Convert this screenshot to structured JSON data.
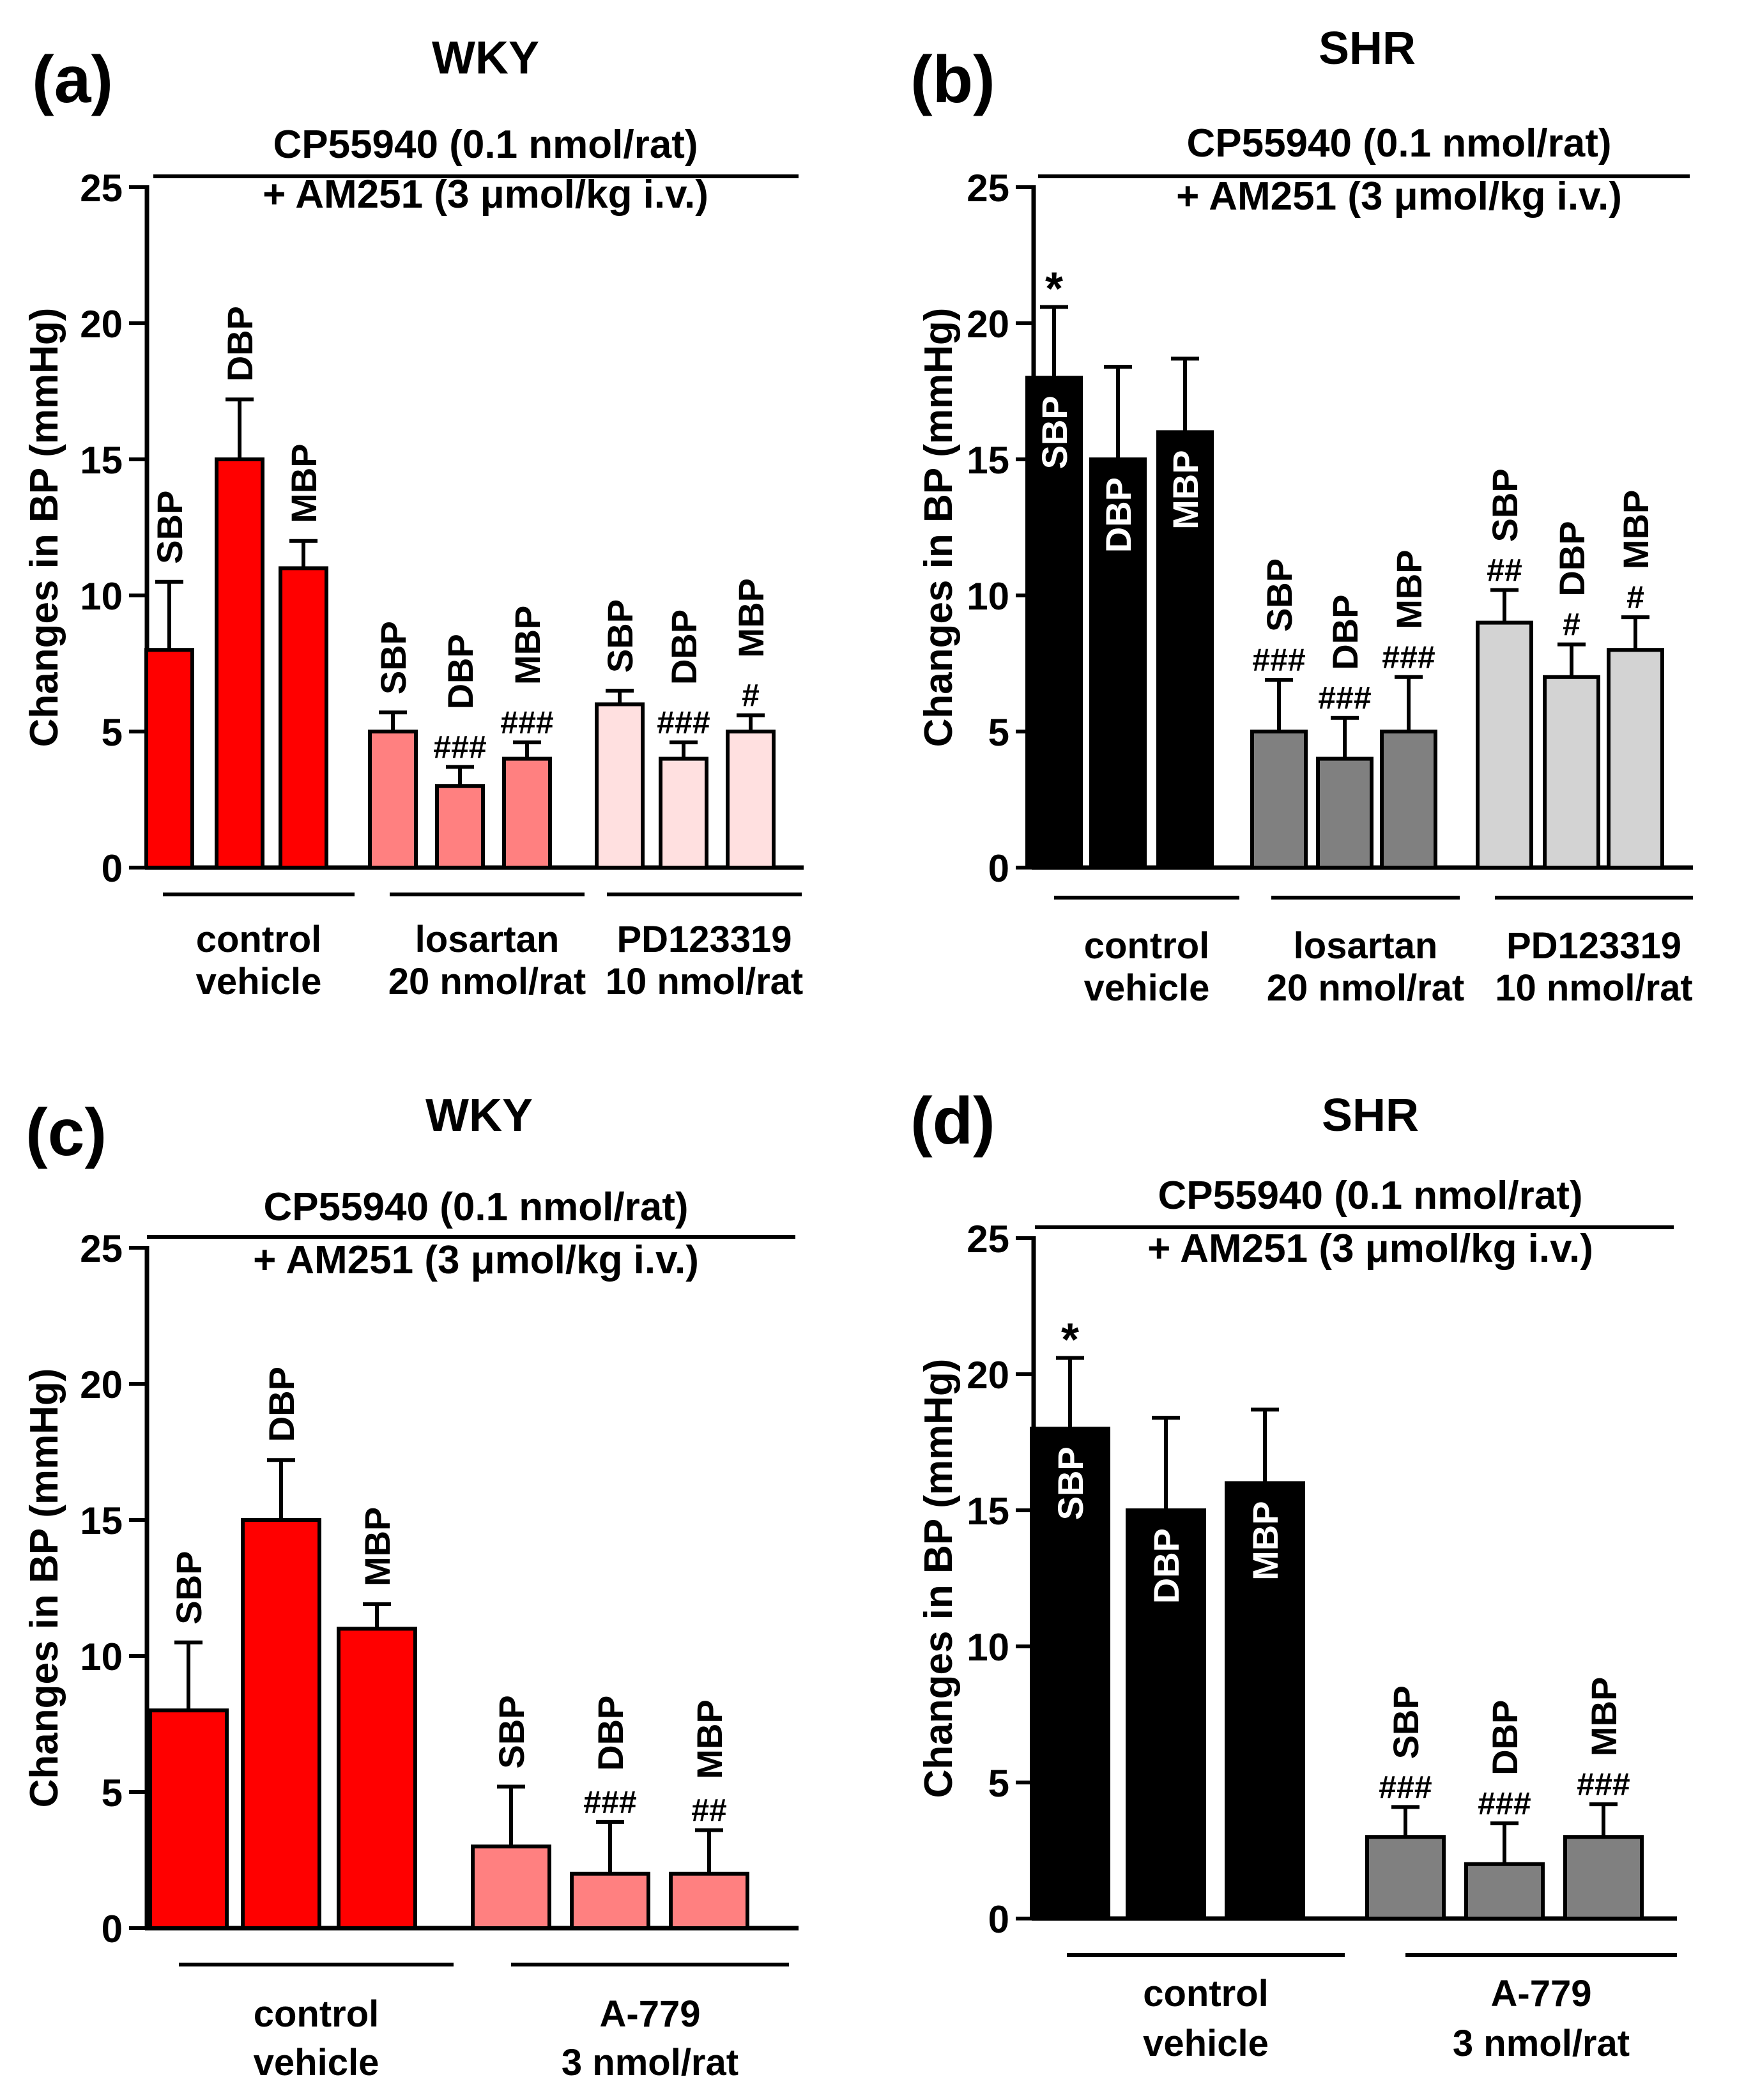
{
  "chart_data": [
    {
      "type": "bar",
      "panel_label": "(a)",
      "title": "WKY",
      "treatment_line1": "CP55940 (0.1 nmol/rat)",
      "treatment_line2": "+ AM251 (3 μmol/kg i.v.)",
      "ylabel": "Changes in BP (mmHg)",
      "ylim": [
        0,
        25
      ],
      "yticks": [
        "0",
        "5",
        "10",
        "15",
        "20",
        "25"
      ],
      "colors": [
        "#ff0000",
        "#ff8080",
        "#ffe0e0"
      ],
      "groups": [
        {
          "label1": "control",
          "label2": "vehicle",
          "bars": [
            {
              "name": "SBP",
              "value": 8,
              "err": 2.5,
              "sig": ""
            },
            {
              "name": "DBP",
              "value": 15,
              "err": 2.2,
              "sig": ""
            },
            {
              "name": "MBP",
              "value": 11,
              "err": 1.0,
              "sig": ""
            }
          ]
        },
        {
          "label1": "losartan",
          "label2": "20 nmol/rat",
          "bars": [
            {
              "name": "SBP",
              "value": 5,
              "err": 0.7,
              "sig": ""
            },
            {
              "name": "DBP",
              "value": 3,
              "err": 0.7,
              "sig": "###"
            },
            {
              "name": "MBP",
              "value": 4,
              "err": 0.6,
              "sig": "###"
            }
          ]
        },
        {
          "label1": "PD123319",
          "label2": "10 nmol/rat",
          "bars": [
            {
              "name": "SBP",
              "value": 6,
              "err": 0.5,
              "sig": ""
            },
            {
              "name": "DBP",
              "value": 4,
              "err": 0.6,
              "sig": "###"
            },
            {
              "name": "MBP",
              "value": 5,
              "err": 0.6,
              "sig": "#"
            }
          ]
        }
      ]
    },
    {
      "type": "bar",
      "panel_label": "(b)",
      "title": "SHR",
      "treatment_line1": "CP55940 (0.1 nmol/rat)",
      "treatment_line2": "+ AM251 (3 μmol/kg i.v.)",
      "ylabel": "Changes in BP (mmHg)",
      "ylim": [
        0,
        25
      ],
      "yticks": [
        "0",
        "5",
        "10",
        "15",
        "20",
        "25"
      ],
      "colors": [
        "#000000",
        "#808080",
        "#d3d3d3"
      ],
      "groups": [
        {
          "label1": "control",
          "label2": "vehicle",
          "bars": [
            {
              "name": "SBP",
              "value": 18,
              "err": 2.6,
              "sig": "*"
            },
            {
              "name": "DBP",
              "value": 15,
              "err": 3.4,
              "sig": ""
            },
            {
              "name": "MBP",
              "value": 16,
              "err": 2.7,
              "sig": ""
            }
          ]
        },
        {
          "label1": "losartan",
          "label2": "20 nmol/rat",
          "bars": [
            {
              "name": "SBP",
              "value": 5,
              "err": 1.9,
              "sig": "###"
            },
            {
              "name": "DBP",
              "value": 4,
              "err": 1.5,
              "sig": "###"
            },
            {
              "name": "MBP",
              "value": 5,
              "err": 2.0,
              "sig": "###"
            }
          ]
        },
        {
          "label1": "PD123319",
          "label2": "10 nmol/rat",
          "bars": [
            {
              "name": "SBP",
              "value": 9,
              "err": 1.2,
              "sig": "##"
            },
            {
              "name": "DBP",
              "value": 7,
              "err": 1.2,
              "sig": "#"
            },
            {
              "name": "MBP",
              "value": 8,
              "err": 1.2,
              "sig": "#"
            }
          ]
        }
      ]
    },
    {
      "type": "bar",
      "panel_label": "(c)",
      "title": "WKY",
      "treatment_line1": "CP55940 (0.1 nmol/rat)",
      "treatment_line2": "+ AM251 (3 μmol/kg i.v.)",
      "ylabel": "Changes in BP (mmHg)",
      "ylim": [
        0,
        25
      ],
      "yticks": [
        "0",
        "5",
        "10",
        "15",
        "20",
        "25"
      ],
      "colors": [
        "#ff0000",
        "#ff8080"
      ],
      "groups": [
        {
          "label1": "control",
          "label2": "vehicle",
          "bars": [
            {
              "name": "SBP",
              "value": 8,
              "err": 2.5,
              "sig": ""
            },
            {
              "name": "DBP",
              "value": 15,
              "err": 2.2,
              "sig": ""
            },
            {
              "name": "MBP",
              "value": 11,
              "err": 0.9,
              "sig": ""
            }
          ]
        },
        {
          "label1": "A-779",
          "label2": "3 nmol/rat",
          "bars": [
            {
              "name": "SBP",
              "value": 3,
              "err": 2.2,
              "sig": ""
            },
            {
              "name": "DBP",
              "value": 2,
              "err": 1.9,
              "sig": "###"
            },
            {
              "name": "MBP",
              "value": 2,
              "err": 1.6,
              "sig": "##"
            }
          ]
        }
      ]
    },
    {
      "type": "bar",
      "panel_label": "(d)",
      "title": "SHR",
      "treatment_line1": "CP55940 (0.1 nmol/rat)",
      "treatment_line2": "+ AM251 (3 μmol/kg i.v.)",
      "ylabel": "Changes in BP (mmHg)",
      "ylim": [
        0,
        25
      ],
      "yticks": [
        "0",
        "5",
        "10",
        "15",
        "20",
        "25"
      ],
      "colors": [
        "#000000",
        "#808080"
      ],
      "groups": [
        {
          "label1": "control",
          "label2": "vehicle",
          "bars": [
            {
              "name": "SBP",
              "value": 18,
              "err": 2.6,
              "sig": "*"
            },
            {
              "name": "DBP",
              "value": 15,
              "err": 3.4,
              "sig": ""
            },
            {
              "name": "MBP",
              "value": 16,
              "err": 2.7,
              "sig": ""
            }
          ]
        },
        {
          "label1": "A-779",
          "label2": "3 nmol/rat",
          "bars": [
            {
              "name": "SBP",
              "value": 3,
              "err": 1.1,
              "sig": "###"
            },
            {
              "name": "DBP",
              "value": 2,
              "err": 1.5,
              "sig": "###"
            },
            {
              "name": "MBP",
              "value": 3,
              "err": 1.2,
              "sig": "###"
            }
          ]
        }
      ]
    }
  ]
}
